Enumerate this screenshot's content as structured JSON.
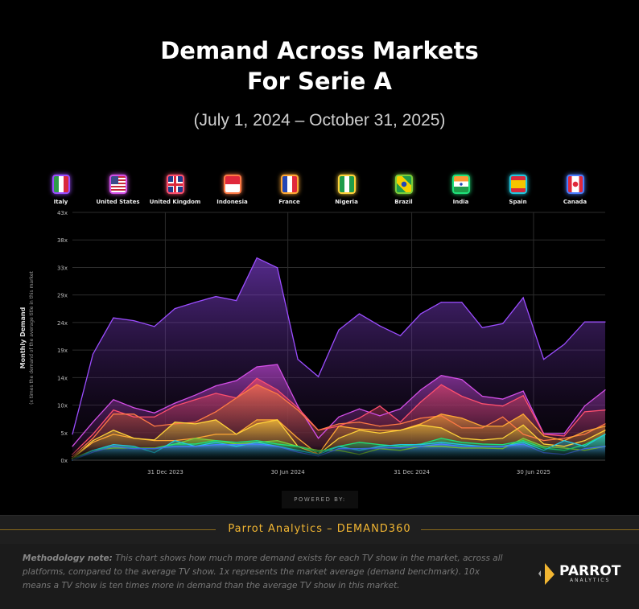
{
  "title_line1": "Demand Across Markets",
  "title_line2": "For Serie A",
  "subtitle": "(July 1, 2024 – October 31, 2025)",
  "legend": [
    {
      "name": "Italy",
      "flag": "italy-flag"
    },
    {
      "name": "United States",
      "flag": "us-flag"
    },
    {
      "name": "United Kingdom",
      "flag": "uk-flag"
    },
    {
      "name": "Indonesia",
      "flag": "indonesia-flag"
    },
    {
      "name": "France",
      "flag": "france-flag"
    },
    {
      "name": "Nigeria",
      "flag": "nigeria-flag"
    },
    {
      "name": "Brazil",
      "flag": "brazil-flag"
    },
    {
      "name": "India",
      "flag": "india-flag"
    },
    {
      "name": "Spain",
      "flag": "spain-flag"
    },
    {
      "name": "Canada",
      "flag": "canada-flag"
    }
  ],
  "chart_data": {
    "type": "area",
    "ylabel": "Monthly Demand",
    "ylabel_sub": "(x times the demand of the average title in this market",
    "ylim": [
      0,
      43
    ],
    "yticks": [
      "0x",
      "5x",
      "10x",
      "14x",
      "19x",
      "24x",
      "29x",
      "33x",
      "38x",
      "43x"
    ],
    "xticks": [
      "31 Dec 2023",
      "30 Jun 2024",
      "31 Dec 2024",
      "30 Jun 2025"
    ],
    "grid": true,
    "legend_position": "top",
    "x": [
      "2023-08",
      "2023-09",
      "2023-10",
      "2023-11",
      "2023-12",
      "2024-01",
      "2024-02",
      "2024-03",
      "2024-04",
      "2024-05",
      "2024-06",
      "2024-07",
      "2024-08",
      "2024-09",
      "2024-10",
      "2024-11",
      "2024-12",
      "2025-01",
      "2025-02",
      "2025-03",
      "2025-04",
      "2025-05",
      "2025-06",
      "2025-07",
      "2025-08",
      "2025-09",
      "2025-10"
    ],
    "series": [
      {
        "name": "Italy",
        "color": "#9b4dff",
        "values": [
          4.5,
          18.4,
          24.7,
          24.2,
          23.2,
          26.3,
          27.4,
          28.4,
          27.7,
          35.1,
          33.4,
          17.5,
          14.5,
          22.6,
          25.4,
          23.3,
          21.6,
          25.4,
          27.4,
          27.4,
          23.0,
          23.7,
          28.2,
          17.5,
          20.1,
          24.0,
          24.0
        ]
      },
      {
        "name": "United States",
        "color": "#d24ee6",
        "values": [
          2.4,
          6.6,
          10.5,
          9.1,
          8.2,
          9.9,
          11.3,
          12.9,
          13.8,
          16.2,
          16.6,
          9.4,
          3.8,
          7.5,
          8.9,
          7.7,
          8.9,
          12.2,
          14.7,
          14.0,
          11.1,
          10.6,
          12.0,
          4.6,
          4.6,
          9.4,
          12.2
        ]
      },
      {
        "name": "United Kingdom",
        "color": "#ff4f6e",
        "values": [
          1.0,
          4.5,
          8.7,
          7.5,
          7.5,
          9.4,
          10.5,
          11.6,
          10.8,
          14.2,
          12.2,
          9.1,
          5.2,
          5.9,
          7.3,
          9.4,
          6.6,
          10.1,
          13.1,
          11.1,
          9.8,
          9.4,
          11.2,
          4.5,
          4.2,
          8.4,
          8.7
        ]
      },
      {
        "name": "Indonesia",
        "color": "#ff7a45",
        "values": [
          0.6,
          3.8,
          8.0,
          8.0,
          5.9,
          6.3,
          6.6,
          8.4,
          10.8,
          13.1,
          11.5,
          8.7,
          5.2,
          6.3,
          6.6,
          5.9,
          6.3,
          7.3,
          7.7,
          5.6,
          5.6,
          7.5,
          4.5,
          3.4,
          3.8,
          4.5,
          6.3
        ]
      },
      {
        "name": "France",
        "color": "#ffa834",
        "values": [
          0.3,
          3.1,
          4.5,
          3.8,
          3.4,
          3.4,
          3.8,
          4.5,
          4.5,
          7.0,
          7.0,
          3.8,
          1.0,
          5.9,
          5.4,
          5.2,
          5.2,
          6.3,
          8.0,
          7.3,
          5.9,
          5.9,
          8.0,
          4.2,
          3.4,
          5.0,
          5.9
        ]
      },
      {
        "name": "Nigeria",
        "color": "#ffd23a",
        "values": [
          0.3,
          3.4,
          5.2,
          3.8,
          3.5,
          6.6,
          6.3,
          7.0,
          4.5,
          6.3,
          7.0,
          2.4,
          1.0,
          3.8,
          5.2,
          4.7,
          5.2,
          6.1,
          5.6,
          3.8,
          3.5,
          3.8,
          6.1,
          2.8,
          2.4,
          3.4,
          5.2
        ]
      },
      {
        "name": "Brazil",
        "color": "#7ccf3a",
        "values": [
          0.3,
          1.7,
          2.1,
          2.1,
          2.1,
          2.8,
          3.8,
          3.4,
          2.8,
          3.1,
          3.4,
          2.4,
          1.7,
          1.7,
          1.0,
          2.0,
          1.7,
          2.4,
          2.4,
          2.1,
          2.1,
          2.0,
          3.8,
          2.4,
          2.1,
          1.7,
          2.4
        ]
      },
      {
        "name": "India",
        "color": "#1fe07a",
        "values": [
          0.0,
          1.7,
          2.4,
          2.1,
          2.0,
          2.8,
          2.8,
          3.4,
          3.1,
          3.4,
          2.8,
          2.4,
          1.4,
          2.4,
          3.1,
          2.7,
          2.4,
          2.8,
          3.8,
          3.1,
          2.8,
          2.7,
          3.4,
          2.1,
          1.7,
          2.7,
          4.5
        ]
      },
      {
        "name": "Spain",
        "color": "#22c8e0",
        "values": [
          0.0,
          1.7,
          2.7,
          2.4,
          1.3,
          3.4,
          2.4,
          3.1,
          2.4,
          3.1,
          2.4,
          1.7,
          1.0,
          2.4,
          1.7,
          2.4,
          2.7,
          2.7,
          3.1,
          2.7,
          2.4,
          2.4,
          3.1,
          1.7,
          3.4,
          2.4,
          4.5
        ]
      },
      {
        "name": "Canada",
        "color": "#4a7dff",
        "values": [
          0.0,
          1.4,
          2.4,
          2.0,
          2.0,
          2.4,
          2.4,
          2.7,
          2.7,
          2.8,
          2.4,
          1.4,
          0.7,
          2.0,
          2.0,
          2.1,
          2.2,
          2.4,
          2.8,
          2.4,
          2.4,
          2.4,
          2.8,
          1.3,
          1.0,
          2.0,
          2.4
        ]
      }
    ]
  },
  "powered_by": "POWERED BY:",
  "footer_brand": "Parrot Analytics – DEMAND360",
  "methodology_label": "Methodology note:",
  "methodology_text": " This chart shows how much more demand exists for each TV show in the market, across all platforms, compared to the average TV show. 1x represents the market average (demand benchmark). 10x means a TV show is ten times more in demand than the average TV show in this market.",
  "logo": {
    "word": "PARROT",
    "sub": "ANALYTICS"
  }
}
